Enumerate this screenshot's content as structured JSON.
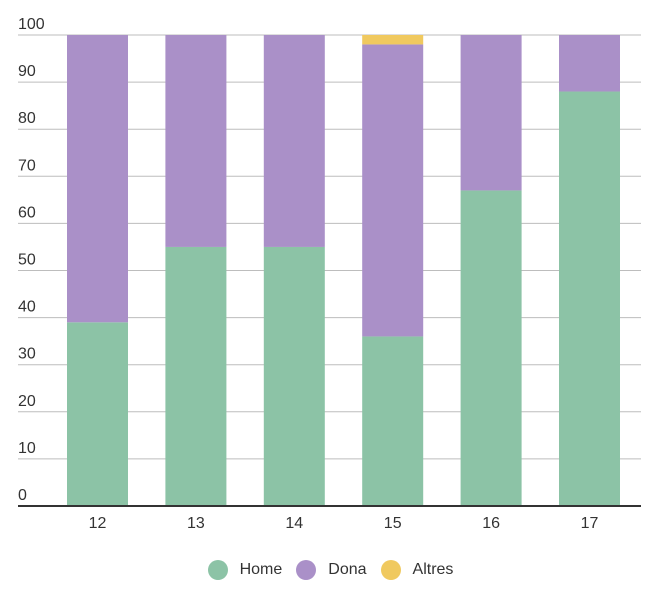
{
  "chart_data": {
    "type": "bar",
    "stacked": true,
    "title": "",
    "xlabel": "",
    "ylabel": "",
    "categories": [
      "12",
      "13",
      "14",
      "15",
      "16",
      "17"
    ],
    "series": [
      {
        "name": "Home",
        "color": "#8cc3a6",
        "values": [
          39,
          55,
          55,
          36,
          67,
          88
        ]
      },
      {
        "name": "Dona",
        "color": "#aa90c8",
        "values": [
          61,
          45,
          45,
          62,
          33,
          12
        ]
      },
      {
        "name": "Altres",
        "color": "#f0c95f",
        "values": [
          0,
          0,
          0,
          2,
          0,
          0
        ]
      }
    ],
    "ylim": [
      0,
      100
    ],
    "yticks": [
      "0",
      "10",
      "20",
      "30",
      "40",
      "50",
      "60",
      "70",
      "80",
      "90",
      "100"
    ],
    "grid": true,
    "legend_position": "bottom"
  }
}
